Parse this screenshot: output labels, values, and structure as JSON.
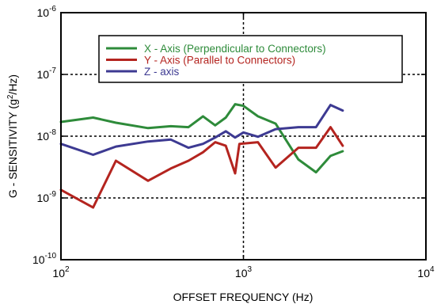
{
  "chart_data": {
    "type": "line",
    "xscale": "log",
    "yscale": "log",
    "xlim": [
      100,
      10000
    ],
    "ylim": [
      1e-10,
      1e-06
    ],
    "xlabel": "OFFSET FREQUENCY (Hz)",
    "ylabel": "G - SENSITIVITY (g²/Hz)",
    "ylabel_parts": {
      "pre": "G - SENSITIVITY (g",
      "sup": "2",
      "post": "/Hz)"
    },
    "x_ticks": [
      {
        "value": 100,
        "base": "10",
        "exp": "2"
      },
      {
        "value": 1000,
        "base": "10",
        "exp": "3"
      },
      {
        "value": 10000,
        "base": "10",
        "exp": "4"
      }
    ],
    "y_ticks": [
      {
        "value": 1e-10,
        "base": "10",
        "exp": "-10"
      },
      {
        "value": 1e-09,
        "base": "10",
        "exp": "-9"
      },
      {
        "value": 1e-08,
        "base": "10",
        "exp": "-8"
      },
      {
        "value": 1e-07,
        "base": "10",
        "exp": "-7"
      },
      {
        "value": 1e-06,
        "base": "10",
        "exp": "-6"
      }
    ],
    "grid": "dashed-major",
    "legend_position": "top-center",
    "series": [
      {
        "name": "X - Axis (Perpendicular to Connectors)",
        "color": "#2e8b3a",
        "x": [
          100,
          150,
          200,
          300,
          400,
          500,
          600,
          700,
          800,
          900,
          1000,
          1200,
          1500,
          2000,
          2500,
          3000,
          3500
        ],
        "y": [
          1.7e-08,
          2e-08,
          1.65e-08,
          1.35e-08,
          1.45e-08,
          1.4e-08,
          2.1e-08,
          1.5e-08,
          2e-08,
          3.3e-08,
          3.1e-08,
          2.1e-08,
          1.6e-08,
          4.2e-09,
          2.6e-09,
          4.8e-09,
          5.7e-09
        ]
      },
      {
        "name": "Y - Axis (Parallel to Connectors)",
        "color": "#b4241f",
        "x": [
          100,
          150,
          200,
          300,
          400,
          500,
          600,
          700,
          800,
          900,
          950,
          1200,
          1500,
          2000,
          2500,
          3000,
          3500
        ],
        "y": [
          1.35e-09,
          7e-10,
          4e-09,
          1.9e-09,
          3e-09,
          4e-09,
          5.5e-09,
          8e-09,
          7e-09,
          2.5e-09,
          7.5e-09,
          8e-09,
          3.1e-09,
          6.5e-09,
          6.5e-09,
          1.4e-08,
          7e-09
        ]
      },
      {
        "name": "Z - axis",
        "color": "#3d3a92",
        "x": [
          100,
          150,
          200,
          300,
          400,
          500,
          600,
          700,
          800,
          900,
          1000,
          1200,
          1500,
          2000,
          2500,
          3000,
          3500
        ],
        "y": [
          7.5e-09,
          5e-09,
          6.8e-09,
          8.2e-09,
          8.8e-09,
          6.5e-09,
          7.5e-09,
          9.5e-09,
          1.2e-08,
          9.5e-09,
          1.15e-08,
          9.8e-09,
          1.3e-08,
          1.4e-08,
          1.4e-08,
          3.2e-08,
          2.6e-08
        ]
      }
    ]
  }
}
